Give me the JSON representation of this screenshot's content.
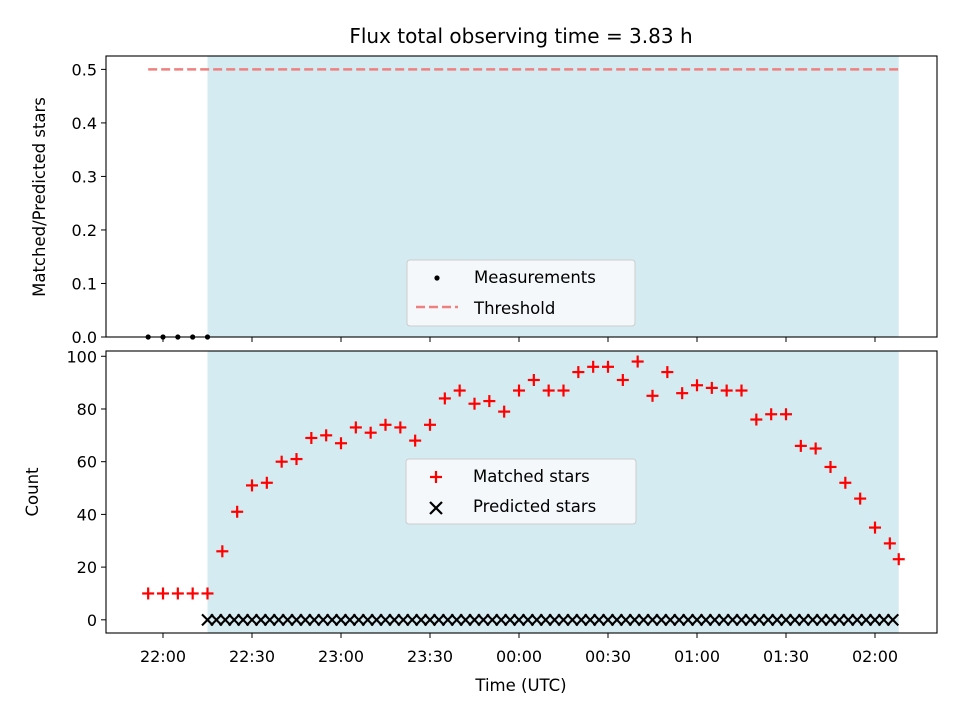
{
  "chart_data": [
    {
      "id": "top",
      "type": "scatter",
      "title": "Flux total observing time = 3.83 h",
      "ylabel": "Matched/Predicted stars",
      "ylim": [
        0,
        0.525
      ],
      "yticks": [
        0.0,
        0.1,
        0.2,
        0.3,
        0.4,
        0.5
      ],
      "ytick_labels": [
        "0.0",
        "0.1",
        "0.2",
        "0.3",
        "0.4",
        "0.5"
      ],
      "observing_window": [
        "22:15",
        "02:08"
      ],
      "window_color": "#d4ebf1",
      "series": [
        {
          "name": "Measurements",
          "marker": "dot",
          "color": "#000000",
          "x": [
            "21:55",
            "22:00",
            "22:05",
            "22:10",
            "22:15"
          ],
          "y": [
            0,
            0,
            0,
            0,
            0
          ]
        },
        {
          "name": "Threshold",
          "marker": "dashed-line",
          "color": "#f08080",
          "x": [
            "21:55",
            "02:08"
          ],
          "y": [
            0.5,
            0.5
          ]
        }
      ],
      "legend": {
        "placement": "lower-center"
      }
    },
    {
      "id": "bottom",
      "type": "scatter",
      "xlabel": "Time (UTC)",
      "ylabel": "Count",
      "ylim": [
        -5,
        102
      ],
      "yticks": [
        0,
        20,
        40,
        60,
        80,
        100
      ],
      "ytick_labels": [
        "0",
        "20",
        "40",
        "60",
        "80",
        "100"
      ],
      "xticks": [
        "22:00",
        "22:30",
        "23:00",
        "23:30",
        "00:00",
        "00:30",
        "01:00",
        "01:30",
        "02:00"
      ],
      "observing_window": [
        "22:15",
        "02:08"
      ],
      "window_color": "#d4ebf1",
      "series": [
        {
          "name": "Matched stars",
          "marker": "plus",
          "color": "#ff0000",
          "x": [
            "21:55",
            "22:00",
            "22:05",
            "22:10",
            "22:15",
            "22:20",
            "22:25",
            "22:30",
            "22:35",
            "22:40",
            "22:45",
            "22:50",
            "22:55",
            "23:00",
            "23:05",
            "23:10",
            "23:15",
            "23:20",
            "23:25",
            "23:30",
            "23:35",
            "23:40",
            "23:45",
            "23:50",
            "23:55",
            "00:00",
            "00:05",
            "00:10",
            "00:15",
            "00:20",
            "00:25",
            "00:30",
            "00:35",
            "00:40",
            "00:45",
            "00:50",
            "00:55",
            "01:00",
            "01:05",
            "01:10",
            "01:15",
            "01:20",
            "01:25",
            "01:30",
            "01:35",
            "01:40",
            "01:45",
            "01:50",
            "01:55",
            "02:00",
            "02:05",
            "02:08"
          ],
          "y": [
            10,
            10,
            10,
            10,
            10,
            26,
            41,
            51,
            52,
            60,
            61,
            69,
            70,
            67,
            73,
            71,
            74,
            73,
            68,
            74,
            84,
            87,
            82,
            83,
            79,
            87,
            91,
            87,
            87,
            94,
            96,
            96,
            91,
            98,
            85,
            94,
            86,
            89,
            88,
            87,
            87,
            76,
            78,
            78,
            66,
            65,
            58,
            52,
            46,
            35,
            29,
            23
          ]
        },
        {
          "name": "Predicted stars",
          "marker": "x",
          "color": "#000000",
          "x_start": "22:15",
          "x_end": "02:08",
          "step_minutes": 3,
          "y_value": 0
        }
      ],
      "legend": {
        "placement": "center"
      }
    }
  ]
}
